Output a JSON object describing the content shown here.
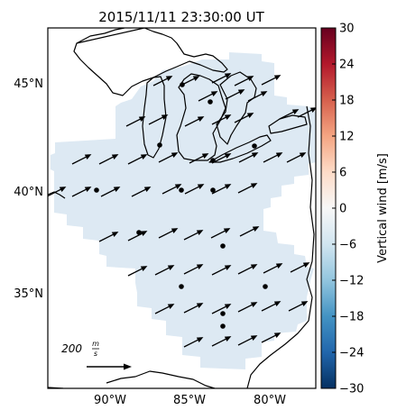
{
  "title": "2015/11/11 23:30:00 UT",
  "colorbar": {
    "label": "Vertical wind [m/s]",
    "ticks": [
      "30",
      "24",
      "18",
      "12",
      "6",
      "0",
      "−6",
      "−12",
      "−18",
      "−24",
      "−30"
    ],
    "min": -30,
    "max": 30,
    "colormap": "RdBu_r",
    "colors": [
      "#053061",
      "#2166ac",
      "#4393c3",
      "#92c5de",
      "#d1e5f0",
      "#f7f7f7",
      "#fddbc7",
      "#f4a582",
      "#d6604d",
      "#b2182b",
      "#67001f"
    ]
  },
  "axes": {
    "lat_labels": [
      "45°N",
      "40°N",
      "35°N"
    ],
    "lon_labels": [
      "90°W",
      "85°W",
      "80°W"
    ]
  },
  "scale": {
    "label": "200",
    "unit_numerator": "m",
    "unit_denominator": "s"
  },
  "field": {
    "fill_color": "#dde9f3",
    "uniform_vertical_wind": -3
  }
}
